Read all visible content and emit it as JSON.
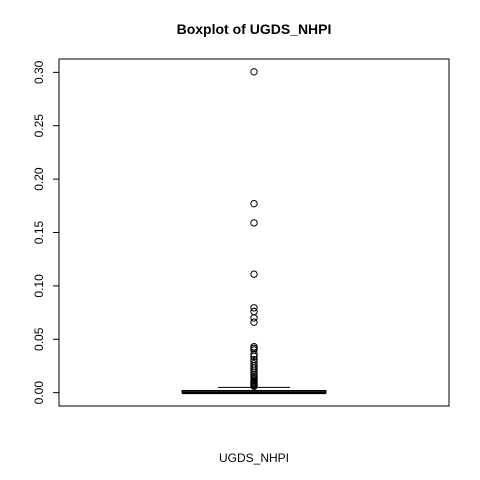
{
  "chart_data": {
    "type": "boxplot",
    "title": "Boxplot of UGDS_NHPI",
    "xlabel": "UGDS_NHPI",
    "ylabel": "",
    "ylim": [
      -0.0125,
      0.3125
    ],
    "yticks": [
      0.0,
      0.05,
      0.1,
      0.15,
      0.2,
      0.25,
      0.3
    ],
    "ytick_labels": [
      "0.00",
      "0.05",
      "0.10",
      "0.15",
      "0.20",
      "0.25",
      "0.30"
    ],
    "grid": false,
    "box": {
      "min": 0.0,
      "q1": 0.0,
      "median": 0.0,
      "q3": 0.002,
      "whisker_low": 0.0,
      "whisker_high": 0.005
    },
    "outliers": [
      0.3005,
      0.177,
      0.159,
      0.111,
      0.0795,
      0.076,
      0.07,
      0.066,
      0.043,
      0.0415,
      0.04,
      0.036,
      0.034,
      0.031,
      0.029,
      0.027,
      0.025,
      0.023,
      0.021,
      0.019,
      0.017,
      0.0155,
      0.014,
      0.0125,
      0.011,
      0.01,
      0.009,
      0.008,
      0.007,
      0.006
    ]
  }
}
